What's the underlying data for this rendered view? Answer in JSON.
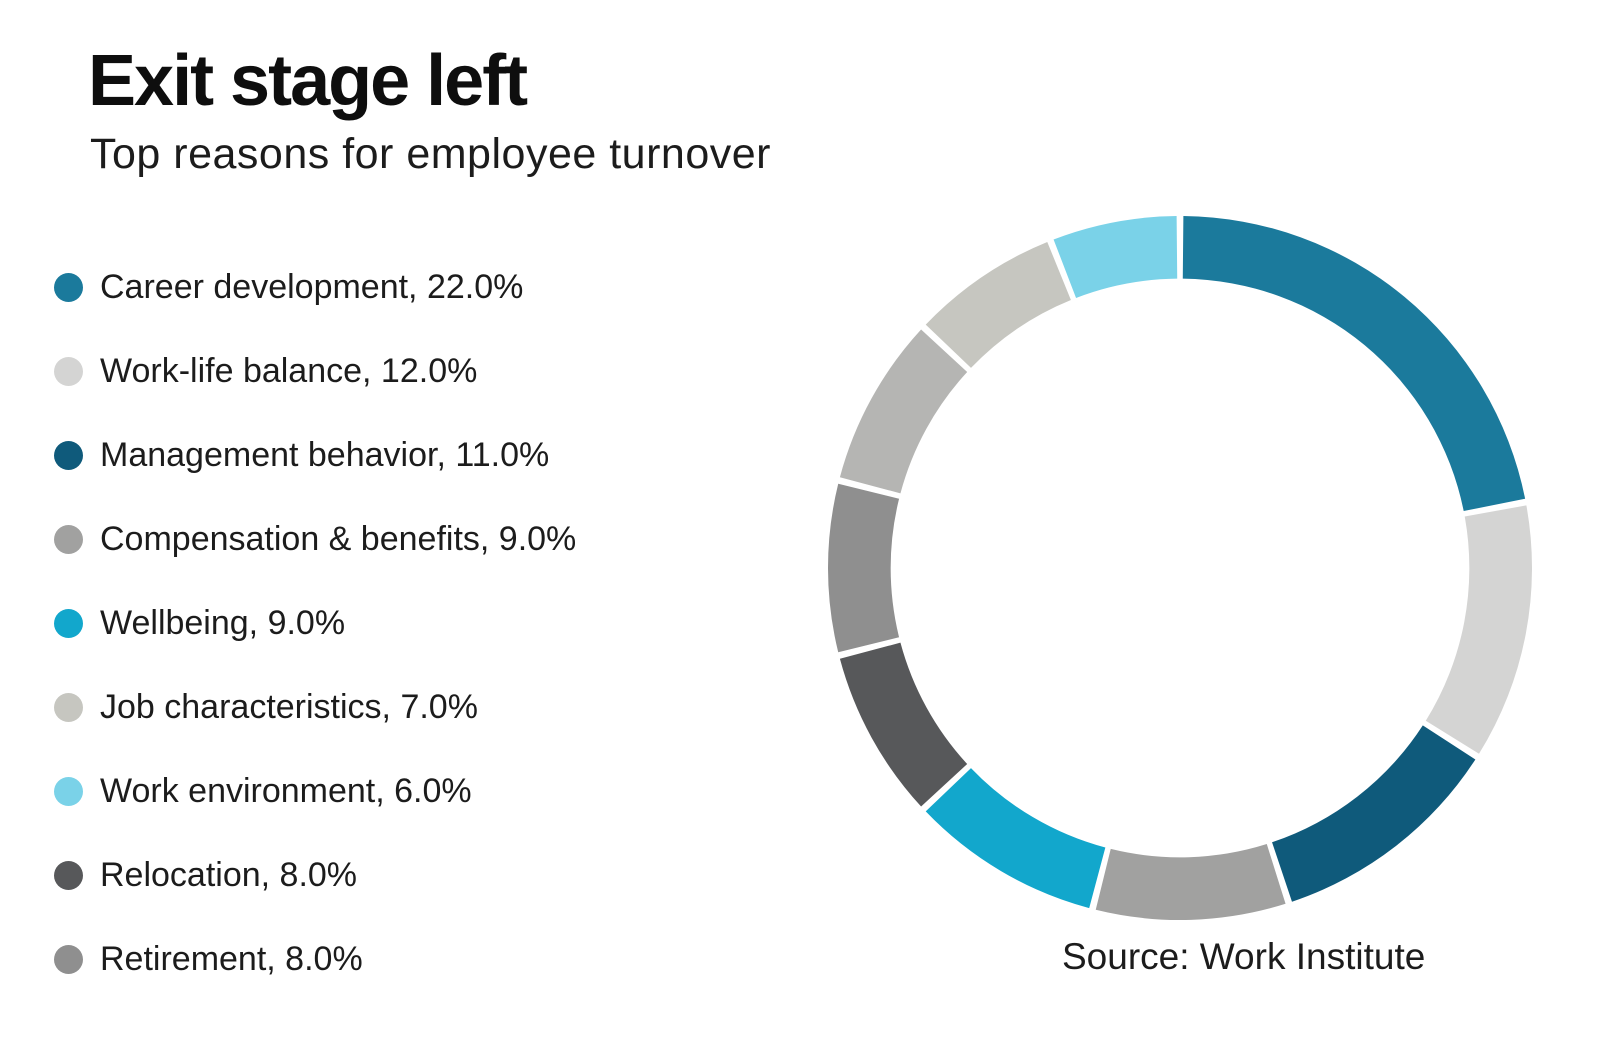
{
  "header": {
    "title": "Exit stage left",
    "subtitle": "Top reasons for employee turnover"
  },
  "legend": {
    "position": "left",
    "items": [
      {
        "label": "Career development, 22.0%",
        "color": "#1b7a9c"
      },
      {
        "label": "Work-life balance, 12.0%",
        "color": "#d4d4d3"
      },
      {
        "label": "Management behavior, 11.0%",
        "color": "#0f5a7b"
      },
      {
        "label": "Compensation & benefits, 9.0%",
        "color": "#a1a1a0"
      },
      {
        "label": "Wellbeing, 9.0%",
        "color": "#12a7cc"
      },
      {
        "label": "Job characteristics, 7.0%",
        "color": "#c6c6c0"
      },
      {
        "label": "Work environment, 6.0%",
        "color": "#7ad2e8"
      },
      {
        "label": "Relocation, 8.0%",
        "color": "#57585a"
      },
      {
        "label": "Retirement, 8.0%",
        "color": "#8f8f8f"
      }
    ]
  },
  "chart_data": {
    "type": "pie",
    "variant": "donut",
    "title": "Exit stage left",
    "subtitle": "Top reasons for employee turnover",
    "source": "Source: Work Institute",
    "start_angle_deg": 0,
    "direction": "clockwise",
    "inner_radius_ratio": 0.822,
    "segment_gap_deg": 1.1,
    "legend_position": "left",
    "segments": [
      {
        "label": "Career development",
        "value": 22.0,
        "color": "#1b7a9c",
        "in_legend": true
      },
      {
        "label": "Work-life balance",
        "value": 12.0,
        "color": "#d4d4d3",
        "in_legend": true
      },
      {
        "label": "Management behavior",
        "value": 11.0,
        "color": "#0f5a7b",
        "in_legend": true
      },
      {
        "label": "Compensation & benefits",
        "value": 9.0,
        "color": "#a1a1a0",
        "in_legend": true
      },
      {
        "label": "Wellbeing",
        "value": 9.0,
        "color": "#12a7cc",
        "in_legend": true
      },
      {
        "label": "Relocation",
        "value": 8.0,
        "color": "#57585a",
        "in_legend": true
      },
      {
        "label": "Retirement",
        "value": 8.0,
        "color": "#8f8f8f",
        "in_legend": true
      },
      {
        "label": "",
        "value": 8.0,
        "color": "#b5b5b3",
        "in_legend": false
      },
      {
        "label": "Job characteristics",
        "value": 7.0,
        "color": "#c6c6c0",
        "in_legend": true
      },
      {
        "label": "Work environment",
        "value": 6.0,
        "color": "#7ad2e8",
        "in_legend": true
      }
    ]
  },
  "footer": {
    "source": "Source: Work Institute"
  }
}
